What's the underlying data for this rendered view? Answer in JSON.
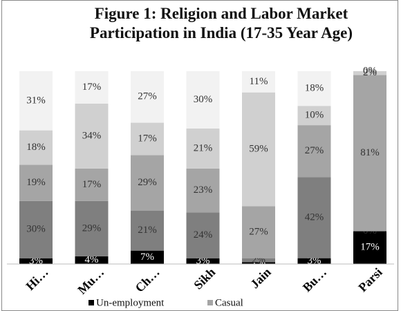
{
  "chart_data": {
    "type": "stacked_bar",
    "title": "Figure 1: Religion and Labor Market Participation in India (17-35  Year Age)",
    "categories": [
      "Hi…",
      "Mu…",
      "Ch…",
      "Sikh",
      "Jain",
      "Bu…",
      "Parsi"
    ],
    "series": [
      {
        "name": "Un-employment",
        "color": "#000000",
        "values": [
          3,
          4,
          7,
          3,
          1,
          3,
          17
        ],
        "value_labels": [
          "3%",
          "4%",
          "7%",
          "3%",
          "1%",
          "3%",
          "17%"
        ]
      },
      {
        "color": "#7f7f7f",
        "values": [
          30,
          29,
          21,
          24,
          2,
          42,
          0
        ],
        "value_labels": [
          "30%",
          "29%",
          "21%",
          "24%",
          "2%",
          "42%",
          "0%"
        ]
      },
      {
        "name": "Casual",
        "color": "#a5a5a5",
        "values": [
          19,
          17,
          29,
          23,
          27,
          27,
          81
        ],
        "value_labels": [
          "19%",
          "17%",
          "29%",
          "23%",
          "27%",
          "27%",
          "81%"
        ]
      },
      {
        "color": "#d0d0d0",
        "values": [
          18,
          34,
          17,
          21,
          59,
          10,
          2
        ],
        "value_labels": [
          "18%",
          "34%",
          "17%",
          "21%",
          "59%",
          "10%",
          "2%"
        ]
      },
      {
        "color": "#f2f2f2",
        "values": [
          31,
          17,
          27,
          30,
          11,
          18,
          0
        ],
        "value_labels": [
          "31%",
          "17%",
          "27%",
          "30%",
          "11%",
          "18%",
          "0%"
        ]
      }
    ]
  }
}
